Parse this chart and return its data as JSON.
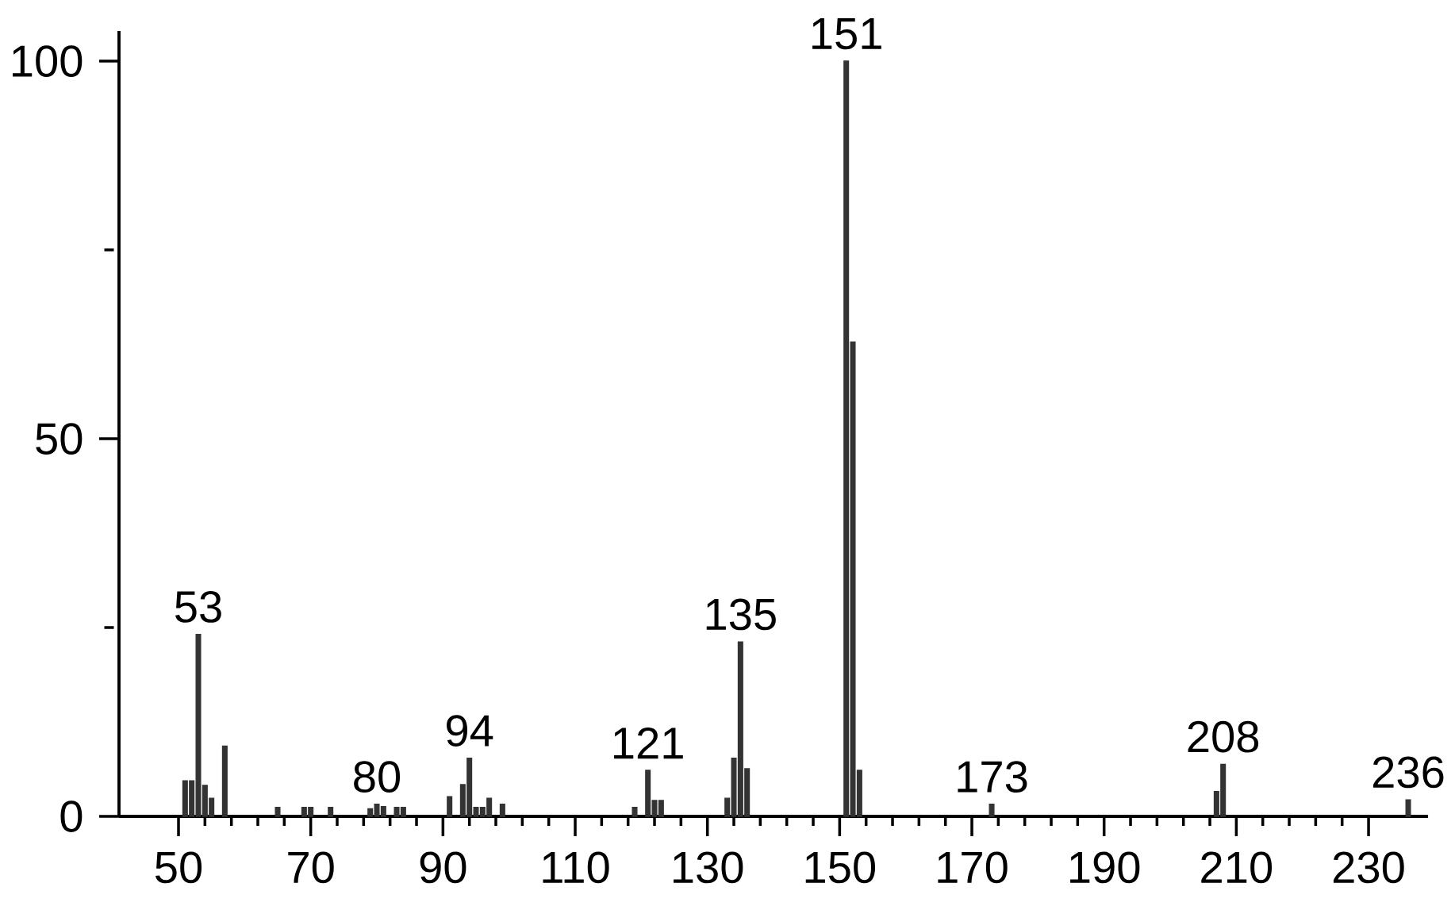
{
  "chart_data": {
    "type": "bar",
    "color": "#333333",
    "x": [
      51,
      52,
      53,
      54,
      55,
      57,
      65,
      69,
      70,
      73,
      79,
      80,
      81,
      83,
      84,
      91,
      93,
      94,
      95,
      96,
      97,
      99,
      119,
      121,
      122,
      123,
      133,
      134,
      135,
      136,
      151,
      152,
      153,
      173,
      207,
      208,
      236
    ],
    "values": [
      4.7,
      4.7,
      24.1,
      4.1,
      2.4,
      9.3,
      1.2,
      1.2,
      1.2,
      1.2,
      1.0,
      1.6,
      1.3,
      1.2,
      1.2,
      2.6,
      4.2,
      7.7,
      1.2,
      1.2,
      2.4,
      1.6,
      1.2,
      6.1,
      2.1,
      2.1,
      2.4,
      7.7,
      23.1,
      6.3,
      100,
      62.8,
      6.1,
      1.6,
      3.3,
      6.9,
      2.2
    ],
    "xlim": [
      41,
      239
    ],
    "ylim": [
      0,
      104
    ],
    "xticks": [
      50,
      70,
      90,
      110,
      130,
      150,
      170,
      190,
      210,
      230
    ],
    "yticks": [
      0,
      50,
      100
    ],
    "grid": false,
    "annotations": [
      {
        "text": "53",
        "x": 53,
        "y": 24.1
      },
      {
        "text": "80",
        "x": 80,
        "y": 1.6
      },
      {
        "text": "94",
        "x": 94,
        "y": 7.7
      },
      {
        "text": "121",
        "x": 121,
        "y": 6.1
      },
      {
        "text": "135",
        "x": 135,
        "y": 23.1
      },
      {
        "text": "151",
        "x": 151,
        "y": 100
      },
      {
        "text": "173",
        "x": 173,
        "y": 1.6
      },
      {
        "text": "208",
        "x": 208,
        "y": 6.9
      },
      {
        "text": "236",
        "x": 236,
        "y": 2.2
      }
    ]
  }
}
